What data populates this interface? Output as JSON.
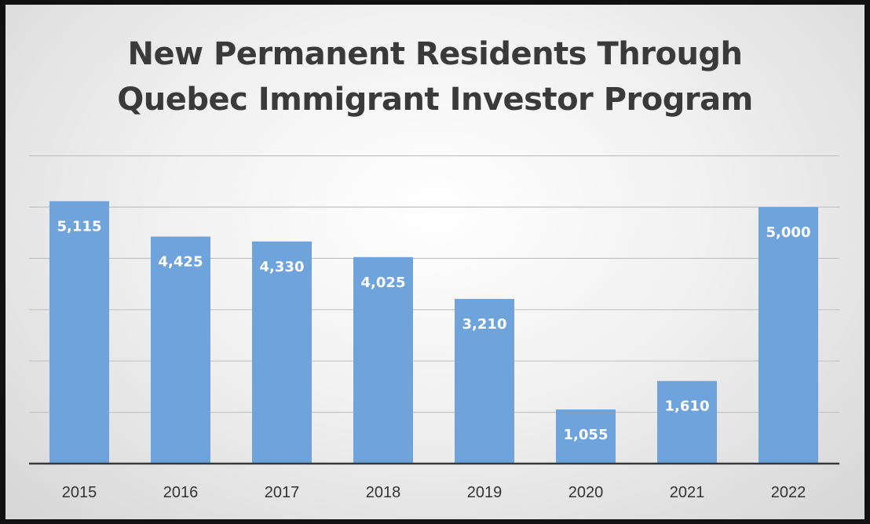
{
  "chart_data": {
    "type": "bar",
    "title": "New Permanent Residents Through Quebec Immigrant Investor Program",
    "title_lines": [
      "New Permanent Residents Through",
      "Quebec Immigrant Investor Program"
    ],
    "xlabel": "",
    "ylabel": "",
    "categories": [
      "2015",
      "2016",
      "2017",
      "2018",
      "2019",
      "2020",
      "2021",
      "2022"
    ],
    "values": [
      5115,
      4425,
      4330,
      4025,
      3210,
      1055,
      1610,
      5000
    ],
    "value_labels": [
      "5,115",
      "4,425",
      "4,330",
      "4,025",
      "3,210",
      "1,055",
      "1,610",
      "5,000"
    ],
    "ylim": [
      0,
      6000
    ],
    "gridlines": [
      1000,
      2000,
      3000,
      4000,
      5000,
      6000
    ],
    "grid": true,
    "legend": "none",
    "bar_color": "#6fa3dc"
  }
}
